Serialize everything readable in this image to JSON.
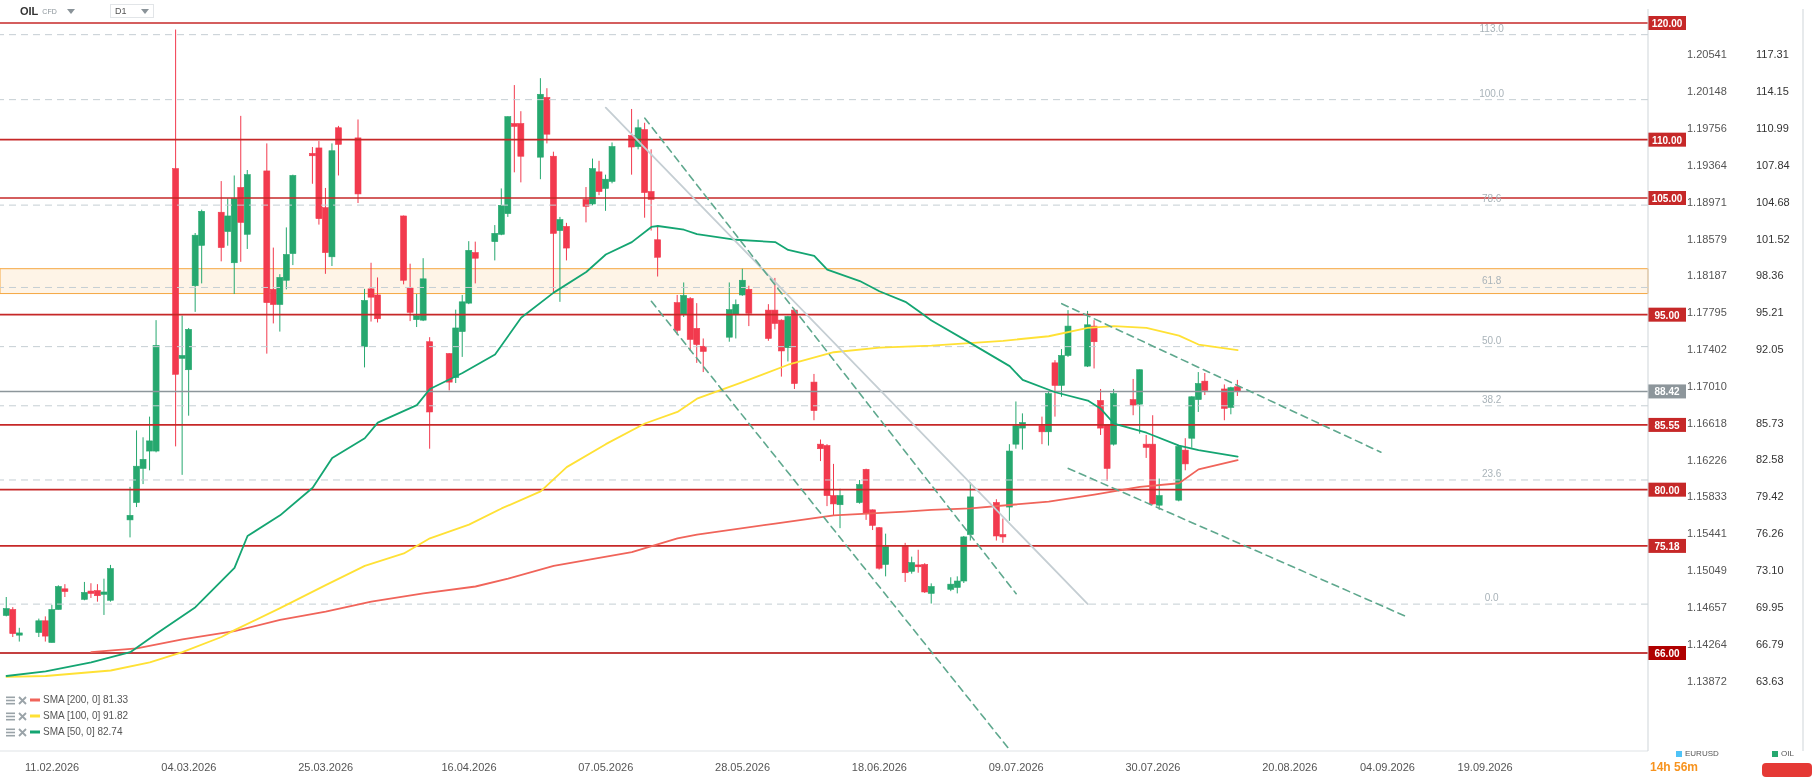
{
  "chart_data": {
    "type": "candlestick",
    "title": "OIL",
    "subtitle": "CFD",
    "annotations": [
      "D1",
      "14h 56m",
      "EURUSD",
      {
        "text": "113.0",
        "x": "2026-09-20",
        "y": 119.0
      },
      {
        "text": "100.0",
        "x": "2026-09-20",
        "y": 113.43
      },
      {
        "text": "78.6",
        "x": "2026-09-20",
        "y": 104.39
      },
      {
        "text": "61.8",
        "x": "2026-09-20",
        "y": 97.33
      },
      {
        "text": "50.0",
        "x": "2026-09-20",
        "y": 92.26
      },
      {
        "text": "38.2",
        "x": "2026-09-20",
        "y": 87.19
      },
      {
        "text": "23.6",
        "x": "2026-09-20",
        "y": 80.83
      },
      {
        "text": "0.0",
        "x": "2026-09-20",
        "y": 70.19
      }
    ],
    "xlim": [
      "2026-02-03",
      "2026-10-14"
    ],
    "xticks": [
      {
        "value": "2026-02-11",
        "label": "11.02.2026"
      },
      {
        "value": "2026-03-04",
        "label": "04.03.2026"
      },
      {
        "value": "2026-03-25",
        "label": "25.03.2026"
      },
      {
        "value": "2026-04-16",
        "label": "16.04.2026"
      },
      {
        "value": "2026-05-07",
        "label": "07.05.2026"
      },
      {
        "value": "2026-05-28",
        "label": "28.05.2026"
      },
      {
        "value": "2026-06-18",
        "label": "18.06.2026"
      },
      {
        "value": "2026-07-09",
        "label": "09.07.2026"
      },
      {
        "value": "2026-07-30",
        "label": "30.07.2026"
      },
      {
        "value": "2026-08-20",
        "label": "20.08.2026"
      },
      {
        "value": "2026-09-04",
        "label": "04.09.2026"
      },
      {
        "value": "2026-09-19",
        "label": "19.09.2026"
      }
    ],
    "ylim": [
      57.6,
      121.2
    ],
    "yticks": [
      63.63,
      66.79,
      69.95,
      {
        "value": 73.1,
        "label": "73.10"
      },
      76.26,
      79.42,
      82.58,
      85.73,
      92.05,
      95.21,
      98.36,
      101.52,
      104.68,
      107.84,
      110.99,
      114.15,
      117.31
    ],
    "y2lim": [
      1.13123,
      1.21025
    ],
    "y2ticks": [
      1.13872,
      1.14264,
      1.14657,
      1.15049,
      1.15441,
      1.15833,
      1.16226,
      1.16618,
      {
        "value": 1.1701,
        "label": "1.17010"
      },
      1.17402,
      1.17795,
      1.18187,
      1.18579,
      1.18971,
      1.19364,
      1.19756,
      1.20148,
      1.20541
    ],
    "legend": "bottom",
    "bands": [
      {
        "axis": "y",
        "from": 96.81,
        "to": 98.94,
        "color": "#f5a742"
      }
    ],
    "ref_lines": [
      {
        "axis": "y",
        "value": 120,
        "label": "120.00",
        "color": "#c62828"
      },
      {
        "axis": "y",
        "value": 110,
        "label": "110.00",
        "color": "#c62828"
      },
      {
        "axis": "y",
        "value": 105,
        "label": "105.00",
        "color": "#c62828"
      },
      {
        "axis": "y",
        "value": 95,
        "label": "95.00",
        "color": "#c62828"
      },
      {
        "axis": "y",
        "value": 85.55,
        "label": "85.55",
        "color": "#c62828"
      },
      {
        "axis": "y",
        "value": 80,
        "label": "80.00",
        "color": "#c62828"
      },
      {
        "axis": "y",
        "value": 75.18,
        "label": "75.18",
        "color": "#c62828"
      },
      {
        "axis": "y",
        "value": 66,
        "label": "66.00",
        "color": "#b00000"
      },
      {
        "axis": "y",
        "value": 88.42,
        "label": "88.42",
        "color": "#8d969b"
      },
      {
        "axis": "y",
        "value": 119.0,
        "color": "#c5ced3",
        "line_style": "dashed"
      },
      {
        "axis": "y",
        "value": 113.43,
        "color": "#c5ced3",
        "line_style": "dashed"
      },
      {
        "axis": "y",
        "value": 104.39,
        "color": "#c5ced3",
        "line_style": "dashed"
      },
      {
        "axis": "y",
        "value": 97.33,
        "color": "#c5ced3",
        "line_style": "dashed"
      },
      {
        "axis": "y",
        "value": 92.26,
        "color": "#c5ced3",
        "line_style": "dashed"
      },
      {
        "axis": "y",
        "value": 87.19,
        "color": "#c5ced3",
        "line_style": "dashed"
      },
      {
        "axis": "y",
        "value": 80.83,
        "color": "#c5ced3",
        "line_style": "dashed"
      },
      {
        "axis": "y",
        "value": 70.19,
        "color": "#c5ced3",
        "line_style": "dashed"
      }
    ],
    "series": [
      {
        "type": "line",
        "name": "SMA [200, 0] 81.33",
        "color": "#f0645a",
        "x": [
          "2026-02-17",
          "2026-02-24",
          "2026-03-03",
          "2026-03-11",
          "2026-03-18",
          "2026-03-25",
          "2026-04-01",
          "2026-04-09",
          "2026-04-17",
          "2026-04-22",
          "2026-04-29",
          "2026-05-11",
          "2026-05-18",
          "2026-05-21",
          "2026-06-02",
          "2026-06-11",
          "2026-06-22",
          "2026-06-26",
          "2026-07-02",
          "2026-07-14",
          "2026-07-21",
          "2026-07-28",
          "2026-08-03",
          "2026-08-06",
          "2026-08-12"
        ],
        "values": [
          66.07,
          66.39,
          67.17,
          67.88,
          68.83,
          69.54,
          70.4,
          71.11,
          71.7,
          72.37,
          73.47,
          74.65,
          75.83,
          76.15,
          77.09,
          77.8,
          78.12,
          78.27,
          78.39,
          78.98,
          79.57,
          80.24,
          80.55,
          81.74,
          82.53
        ]
      },
      {
        "type": "line",
        "name": "SMA [100, 0] 91.82",
        "color": "#ffe135",
        "x": [
          "2026-02-04",
          "2026-02-10",
          "2026-02-20",
          "2026-02-26",
          "2026-03-03",
          "2026-03-09",
          "2026-03-11",
          "2026-03-18",
          "2026-03-25",
          "2026-03-31",
          "2026-04-06",
          "2026-04-10",
          "2026-04-16",
          "2026-04-21",
          "2026-04-27",
          "2026-05-01",
          "2026-05-07",
          "2026-05-13",
          "2026-05-18",
          "2026-05-21",
          "2026-05-28",
          "2026-06-04",
          "2026-06-11",
          "2026-06-18",
          "2026-06-26",
          "2026-07-07",
          "2026-07-14",
          "2026-07-20",
          "2026-07-24",
          "2026-07-29",
          "2026-08-03",
          "2026-08-06",
          "2026-08-12"
        ],
        "values": [
          63.95,
          64.03,
          64.5,
          65.2,
          66.07,
          67.37,
          67.96,
          69.85,
          71.82,
          73.47,
          74.53,
          75.83,
          77.0,
          78.39,
          79.85,
          81.93,
          83.9,
          85.67,
          86.66,
          87.8,
          89.22,
          90.71,
          91.78,
          92.17,
          92.35,
          92.76,
          93.15,
          93.86,
          94.02,
          93.86,
          93.2,
          92.44,
          91.97
        ]
      },
      {
        "type": "line",
        "name": "SMA [50, 0] 82.74",
        "color": "#14a572",
        "x": [
          "2026-02-04",
          "2026-02-10",
          "2026-02-17",
          "2026-02-23",
          "2026-02-27",
          "2026-03-05",
          "2026-03-11",
          "2026-03-13",
          "2026-03-18",
          "2026-03-23",
          "2026-03-26",
          "2026-03-31",
          "2026-04-02",
          "2026-04-08",
          "2026-04-10",
          "2026-04-15",
          "2026-04-20",
          "2026-04-24",
          "2026-04-29",
          "2026-05-04",
          "2026-05-07",
          "2026-05-11",
          "2026-05-14",
          "2026-05-15",
          "2026-05-19",
          "2026-05-21",
          "2026-05-27",
          "2026-06-02",
          "2026-06-04",
          "2026-06-08",
          "2026-06-10",
          "2026-06-15",
          "2026-06-18",
          "2026-06-22",
          "2026-06-24",
          "2026-06-26",
          "2026-07-02",
          "2026-07-08",
          "2026-07-10",
          "2026-07-15",
          "2026-07-20",
          "2026-07-22",
          "2026-07-24",
          "2026-07-29",
          "2026-08-03",
          "2026-08-06",
          "2026-08-12"
        ],
        "values": [
          64.03,
          64.42,
          65.2,
          66.07,
          67.65,
          69.93,
          73.3,
          76.03,
          77.8,
          80.16,
          82.72,
          84.41,
          85.75,
          87.25,
          88.63,
          90.0,
          91.58,
          94.73,
          96.89,
          98.66,
          100.16,
          101.22,
          102.52,
          102.6,
          102.28,
          101.9,
          101.42,
          101.22,
          100.55,
          100.04,
          98.86,
          97.88,
          97.01,
          96.1,
          95.32,
          94.5,
          92.56,
          90.59,
          89.41,
          88.35,
          87.64,
          86.93,
          85.67,
          84.88,
          83.78,
          83.39,
          82.84
        ]
      },
      {
        "type": "line",
        "color": "#c5ced3",
        "x": [
          "2026-05-07",
          "2026-07-20"
        ],
        "values": [
          112.74,
          70.19
        ]
      },
      {
        "type": "line",
        "color": "#5fa88e",
        "line_style": "dashed",
        "x": [
          "2026-05-14",
          "2026-07-08"
        ],
        "values": [
          96.14,
          57.7
        ]
      },
      {
        "type": "line",
        "color": "#5fa88e",
        "line_style": "dashed",
        "x": [
          "2026-05-13",
          "2026-07-09"
        ],
        "values": [
          111.84,
          71.08
        ]
      },
      {
        "type": "line",
        "color": "#5fa88e",
        "line_style": "dashed",
        "x": [
          "2026-07-16",
          "2026-09-03"
        ],
        "values": [
          95.94,
          83.21
        ]
      },
      {
        "type": "line",
        "color": "#5fa88e",
        "line_style": "dashed",
        "x": [
          "2026-07-17",
          "2026-09-07"
        ],
        "values": [
          81.82,
          69.1
        ]
      },
      {
        "name": "OIL",
        "color": "#26a86f",
        "x": [
          "2026-02-04",
          "2026-02-05",
          "2026-02-06",
          "2026-02-09",
          "2026-02-10",
          "2026-02-11",
          "2026-02-12",
          "2026-02-13",
          "2026-02-16",
          "2026-02-17",
          "2026-02-18",
          "2026-02-19",
          "2026-02-20",
          "2026-02-23",
          "2026-02-24",
          "2026-02-25",
          "2026-02-26",
          "2026-02-27",
          "2026-03-02",
          "2026-03-03",
          "2026-03-04",
          "2026-03-05",
          "2026-03-06",
          "2026-03-09",
          "2026-03-10",
          "2026-03-11",
          "2026-03-12",
          "2026-03-13",
          "2026-03-16",
          "2026-03-17",
          "2026-03-18",
          "2026-03-19",
          "2026-03-20",
          "2026-03-23",
          "2026-03-24",
          "2026-03-25",
          "2026-03-26",
          "2026-03-27",
          "2026-03-30",
          "2026-03-31",
          "2026-04-01",
          "2026-04-02",
          "2026-04-06",
          "2026-04-07",
          "2026-04-08",
          "2026-04-09",
          "2026-04-10",
          "2026-04-13",
          "2026-04-14",
          "2026-04-15",
          "2026-04-16",
          "2026-04-17",
          "2026-04-20",
          "2026-04-21",
          "2026-04-22",
          "2026-04-23",
          "2026-04-24",
          "2026-04-27",
          "2026-04-28",
          "2026-04-29",
          "2026-04-30",
          "2026-05-01",
          "2026-05-04",
          "2026-05-05",
          "2026-05-06",
          "2026-05-07",
          "2026-05-08",
          "2026-05-11",
          "2026-05-12",
          "2026-05-13",
          "2026-05-14",
          "2026-05-15",
          "2026-05-18",
          "2026-05-19",
          "2026-05-20",
          "2026-05-21",
          "2026-05-22",
          "2026-05-26",
          "2026-05-27",
          "2026-05-28",
          "2026-05-29",
          "2026-06-01",
          "2026-06-02",
          "2026-06-03",
          "2026-06-04",
          "2026-06-05",
          "2026-06-08",
          "2026-06-09",
          "2026-06-10",
          "2026-06-11",
          "2026-06-12",
          "2026-06-15",
          "2026-06-16",
          "2026-06-17",
          "2026-06-18",
          "2026-06-19",
          "2026-06-22",
          "2026-06-23",
          "2026-06-24",
          "2026-06-25",
          "2026-06-26",
          "2026-06-29",
          "2026-06-30",
          "2026-07-01",
          "2026-07-02",
          "2026-07-06",
          "2026-07-07",
          "2026-07-08",
          "2026-07-09",
          "2026-07-10",
          "2026-07-13",
          "2026-07-14",
          "2026-07-15",
          "2026-07-16",
          "2026-07-17",
          "2026-07-20",
          "2026-07-21",
          "2026-07-22",
          "2026-07-23",
          "2026-07-24",
          "2026-07-27",
          "2026-07-28",
          "2026-07-29",
          "2026-07-30",
          "2026-07-31",
          "2026-08-03",
          "2026-08-04",
          "2026-08-05",
          "2026-08-06",
          "2026-08-07",
          "2026-08-10",
          "2026-08-11",
          "2026-08-12"
        ],
        "ohlc": [
          [
            69.22,
            70.8,
            69.14,
            69.81
          ],
          [
            69.73,
            69.93,
            67.37,
            67.66
          ],
          [
            67.53,
            68.16,
            66.98,
            67.72
          ],
          [
            67.76,
            68.95,
            67.37,
            68.76
          ],
          [
            68.76,
            69.14,
            66.98,
            67.45
          ],
          [
            66.9,
            70.13,
            66.9,
            69.73
          ],
          [
            69.73,
            71.8,
            69.73,
            71.7
          ],
          [
            71.5,
            71.9,
            70.8,
            71.27
          ],
          [
            70.6,
            72.09,
            70.52,
            71.19
          ],
          [
            71.31,
            71.98,
            70.72,
            71.11
          ],
          [
            71.35,
            71.9,
            70.4,
            70.91
          ],
          [
            71.03,
            72.37,
            69.26,
            71.23
          ],
          [
            70.52,
            73.55,
            70.4,
            73.24
          ],
          [
            77.41,
            80.24,
            75.91,
            77.8
          ],
          [
            78.9,
            85.08,
            78.51,
            82.01
          ],
          [
            81.82,
            84.49,
            80.48,
            82.6
          ],
          [
            83.31,
            86.26,
            81.66,
            84.18
          ],
          [
            83.31,
            94.53,
            83.2,
            92.36
          ],
          [
            107.52,
            119.44,
            83.71,
            89.89
          ],
          [
            91.26,
            94.92,
            81.27,
            91.5
          ],
          [
            90.28,
            93.86,
            86.34,
            93.74
          ],
          [
            97.48,
            102.0,
            95.24,
            101.81
          ],
          [
            100.94,
            104.0,
            97.68,
            103.86
          ],
          [
            103.78,
            106.45,
            99.57,
            100.75
          ],
          [
            102.13,
            104.96,
            100.91,
            103.46
          ],
          [
            99.45,
            106.93,
            96.77,
            104.96
          ],
          [
            105.9,
            112.04,
            99.53,
            102.91
          ],
          [
            101.89,
            107.4,
            100.63,
            107.0
          ],
          [
            107.32,
            109.68,
            91.66,
            96.03
          ],
          [
            97.17,
            100.75,
            94.25,
            95.87
          ],
          [
            95.87,
            98.47,
            93.55,
            98.19
          ],
          [
            97.95,
            102.48,
            97.17,
            100.16
          ],
          [
            100.24,
            107.0,
            99.25,
            106.93
          ],
          [
            108.82,
            109.37,
            106.22,
            108.62
          ],
          [
            109.29,
            109.88,
            102.72,
            103.23
          ],
          [
            104.17,
            105.86,
            98.5,
            100.32
          ],
          [
            99.96,
            109.68,
            99.17,
            109.05
          ],
          [
            111.02,
            111.18,
            106.93,
            109.6
          ],
          [
            110.15,
            111.73,
            104.57,
            105.35
          ],
          [
            92.25,
            97.21,
            90.48,
            96.22
          ],
          [
            97.21,
            99.45,
            94.41,
            96.5
          ],
          [
            96.69,
            98.19,
            94.33,
            94.65
          ],
          [
            103.46,
            103.5,
            97.6,
            97.95
          ],
          [
            97.28,
            99.37,
            94.45,
            95.2
          ],
          [
            94.57,
            96.77,
            93.94,
            94.92
          ],
          [
            94.53,
            99.84,
            94.45,
            98.07
          ],
          [
            92.68,
            93.07,
            83.51,
            86.66
          ],
          [
            91.66,
            91.7,
            88.51,
            89.22
          ],
          [
            89.61,
            95.43,
            89.14,
            93.86
          ],
          [
            93.55,
            96.69,
            91.38,
            96.1
          ],
          [
            95.99,
            101.3,
            95.9,
            100.51
          ],
          [
            100.32,
            101.26,
            97.68,
            99.84
          ],
          [
            101.26,
            102.68,
            99.65,
            101.97
          ],
          [
            101.89,
            105.82,
            101.81,
            104.37
          ],
          [
            103.66,
            112.0,
            103.38,
            111.97
          ],
          [
            111.38,
            114.68,
            107.2,
            111.14
          ],
          [
            111.38,
            112.44,
            106.34,
            108.58
          ],
          [
            108.5,
            115.27,
            106.61,
            113.89
          ],
          [
            113.62,
            114.41,
            109.68,
            110.47
          ],
          [
            108.58,
            108.97,
            96.81,
            101.97
          ],
          [
            102.21,
            103.38,
            96.1,
            103.15
          ],
          [
            102.56,
            102.87,
            99.65,
            100.71
          ],
          [
            104.88,
            105.94,
            102.91,
            104.29
          ],
          [
            104.49,
            108.38,
            104.37,
            107.52
          ],
          [
            107.24,
            108.19,
            105.24,
            105.55
          ],
          [
            105.82,
            107.0,
            103.9,
            106.61
          ],
          [
            106.42,
            109.76,
            106.26,
            109.41
          ],
          [
            110.35,
            112.63,
            107.0,
            109.37
          ],
          [
            109.41,
            111.73,
            109.17,
            111.02
          ],
          [
            110.86,
            111.45,
            103.31,
            105.47
          ],
          [
            105.55,
            109.17,
            102.21,
            104.88
          ],
          [
            101.42,
            102.68,
            98.27,
            99.92
          ],
          [
            96.03,
            96.69,
            93.27,
            93.66
          ],
          [
            95.0,
            97.76,
            94.8,
            96.65
          ],
          [
            96.38,
            96.5,
            91.89,
            92.88
          ],
          [
            93.82,
            95.99,
            90.87,
            92.44
          ],
          [
            92.29,
            92.96,
            90.08,
            91.85
          ],
          [
            93.07,
            97.76,
            92.68,
            95.43
          ],
          [
            95.0,
            96.3,
            92.96,
            95.87
          ],
          [
            96.69,
            98.94,
            96.61,
            97.95
          ],
          [
            97.17,
            97.48,
            94.02,
            95.12
          ],
          [
            95.39,
            95.9,
            92.76,
            92.96
          ],
          [
            95.39,
            98.15,
            93.74,
            94.25
          ],
          [
            94.53,
            94.6,
            89.69,
            91.89
          ],
          [
            92.17,
            94.9,
            90.99,
            94.84
          ],
          [
            95.39,
            95.51,
            88.63,
            89.1
          ],
          [
            89.22,
            89.92,
            85.95,
            86.78
          ],
          [
            83.9,
            84.3,
            82.45,
            83.51
          ],
          [
            83.78,
            83.9,
            78.59,
            79.49
          ],
          [
            79.49,
            82.21,
            77.8,
            78.78
          ],
          [
            78.71,
            80.08,
            76.7,
            79.49
          ],
          [
            78.9,
            80.83,
            78.8,
            80.44
          ],
          [
            81.74,
            81.8,
            77.41,
            78.0
          ],
          [
            78.27,
            78.3,
            76.54,
            76.94
          ],
          [
            76.74,
            76.8,
            73.15,
            73.27
          ],
          [
            73.59,
            76.23,
            72.57,
            75.12
          ],
          [
            75.16,
            75.44,
            72.09,
            72.88
          ],
          [
            73.0,
            74.26,
            72.8,
            73.75
          ],
          [
            73.55,
            74.85,
            72.88,
            73.39
          ],
          [
            73.59,
            73.7,
            71.15,
            71.23
          ],
          [
            71.11,
            71.97,
            70.24,
            71.7
          ],
          [
            71.46,
            72.49,
            71.3,
            71.9
          ],
          [
            71.62,
            72.57,
            71.11,
            72.17
          ],
          [
            72.17,
            76.03,
            72.0,
            75.95
          ],
          [
            76.15,
            80.63,
            75.64,
            79.38
          ],
          [
            78.9,
            79.18,
            75.64,
            76.03
          ],
          [
            76.15,
            77.53,
            75.44,
            75.95
          ],
          [
            78.51,
            83.9,
            77.33,
            83.31
          ],
          [
            83.9,
            87.56,
            83.51,
            85.48
          ],
          [
            85.28,
            86.54,
            83.43,
            85.75
          ],
          [
            85.48,
            86.26,
            83.9,
            84.96
          ],
          [
            84.96,
            88.43,
            83.78,
            88.23
          ],
          [
            90.87,
            91.1,
            86.26,
            88.94
          ],
          [
            88.94,
            92.05,
            87.96,
            91.5
          ],
          [
            91.5,
            95.39,
            91.38,
            94.02
          ],
          [
            90.59,
            95.32,
            90.51,
            94.13
          ],
          [
            94.02,
            94.53,
            90.39,
            92.68
          ],
          [
            87.64,
            88.63,
            84.69,
            85.28
          ],
          [
            85.59,
            85.6,
            80.75,
            81.82
          ],
          [
            83.9,
            88.63,
            83.78,
            88.23
          ],
          [
            87.72,
            89.49,
            86.38,
            87.25
          ],
          [
            87.33,
            90.3,
            84.8,
            90.28
          ],
          [
            83.9,
            84.69,
            82.72,
            83.63
          ],
          [
            83.9,
            86.38,
            78.71,
            78.78
          ],
          [
            78.67,
            80.95,
            78.27,
            79.49
          ],
          [
            79.1,
            83.8,
            79.0,
            83.71
          ],
          [
            83.39,
            84.41,
            81.66,
            82.21
          ],
          [
            84.41,
            88.0,
            83.59,
            87.96
          ],
          [
            87.72,
            90.08,
            86.66,
            89.1
          ],
          [
            89.3,
            90.0,
            88.11,
            88.51
          ],
          [
            88.63,
            89.02,
            85.95,
            86.97
          ],
          [
            87.05,
            88.82,
            86.46,
            88.74
          ],
          [
            88.82,
            89.41,
            88.03,
            88.42
          ]
        ],
        "colors": [
          "#26a86f",
          "#f23a4e",
          "#26a86f",
          "#26a86f",
          "#f23a4e",
          "#26a86f",
          "#26a86f",
          "#f23a4e",
          "#26a86f",
          "#f23a4e",
          "#f23a4e",
          "#26a86f",
          "#26a86f",
          "#26a86f",
          "#26a86f",
          "#26a86f",
          "#26a86f",
          "#26a86f",
          "#f23a4e",
          "#26a86f",
          "#26a86f",
          "#26a86f",
          "#26a86f",
          "#f23a4e",
          "#26a86f",
          "#26a86f",
          "#f23a4e",
          "#26a86f",
          "#f23a4e",
          "#f23a4e",
          "#26a86f",
          "#26a86f",
          "#26a86f",
          "#f23a4e",
          "#f23a4e",
          "#f23a4e",
          "#26a86f",
          "#f23a4e",
          "#f23a4e",
          "#26a86f",
          "#f23a4e",
          "#f23a4e",
          "#f23a4e",
          "#f23a4e",
          "#26a86f",
          "#26a86f",
          "#f23a4e",
          "#f23a4e",
          "#26a86f",
          "#26a86f",
          "#26a86f",
          "#f23a4e",
          "#26a86f",
          "#26a86f",
          "#26a86f",
          "#f23a4e",
          "#f23a4e",
          "#26a86f",
          "#f23a4e",
          "#f23a4e",
          "#26a86f",
          "#f23a4e",
          "#f23a4e",
          "#26a86f",
          "#f23a4e",
          "#26a86f",
          "#26a86f",
          "#f23a4e",
          "#26a86f",
          "#f23a4e",
          "#f23a4e",
          "#f23a4e",
          "#f23a4e",
          "#26a86f",
          "#f23a4e",
          "#f23a4e",
          "#f23a4e",
          "#26a86f",
          "#26a86f",
          "#26a86f",
          "#f23a4e",
          "#f23a4e",
          "#f23a4e",
          "#f23a4e",
          "#26a86f",
          "#f23a4e",
          "#f23a4e",
          "#f23a4e",
          "#f23a4e",
          "#f23a4e",
          "#26a86f",
          "#26a86f",
          "#f23a4e",
          "#f23a4e",
          "#f23a4e",
          "#26a86f",
          "#f23a4e",
          "#26a86f",
          "#f23a4e",
          "#f23a4e",
          "#26a86f",
          "#26a86f",
          "#26a86f",
          "#26a86f",
          "#26a86f",
          "#f23a4e",
          "#f23a4e",
          "#26a86f",
          "#26a86f",
          "#26a86f",
          "#f23a4e",
          "#26a86f",
          "#f23a4e",
          "#26a86f",
          "#26a86f",
          "#26a86f",
          "#f23a4e",
          "#f23a4e",
          "#f23a4e",
          "#26a86f",
          "#f23a4e",
          "#26a86f",
          "#f23a4e",
          "#f23a4e",
          "#26a86f",
          "#26a86f",
          "#f23a4e",
          "#26a86f",
          "#26a86f",
          "#f23a4e",
          "#f23a4e",
          "#26a86f",
          "#f23a4e"
        ]
      }
    ]
  }
}
